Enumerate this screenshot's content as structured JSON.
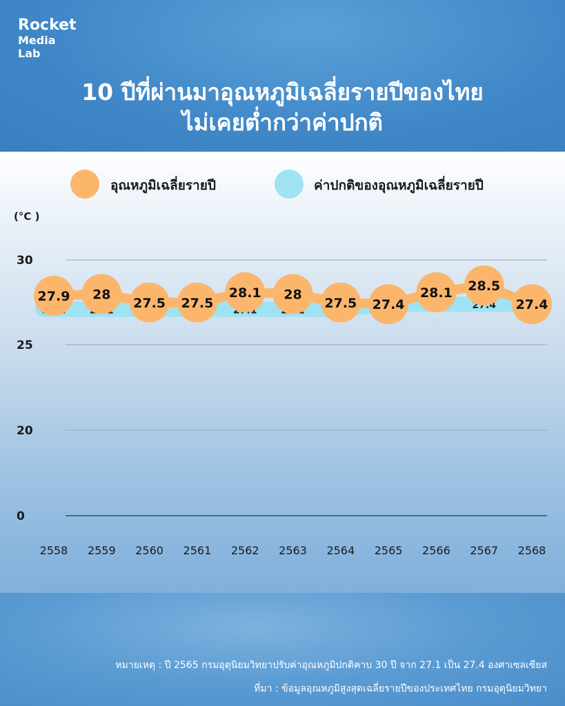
{
  "brand": {
    "line1": "Rocket",
    "line2": "Media",
    "line3": "Lab"
  },
  "title": {
    "line1": "10 ปีที่ผ่านมาอุณหภูมิเฉลี่ยรายปีของไทย",
    "line2": "ไม่เคยต่ำกว่าค่าปกติ"
  },
  "legend": {
    "annual": "อุณหภูมิเฉลี่ยรายปี",
    "normal": "ค่าปกติของอุณหภูมิเฉลี่ยรายปี"
  },
  "colors": {
    "annual": "#fbb66c",
    "normal": "#9fe3f3",
    "grid": "#9aa8b6",
    "axis": "#3a4a5a"
  },
  "footer": {
    "note": "หมายเหตุ : ปี 2565 กรมอุตุนิยมวิทยาปรับค่าอุณหภูมิปกติคาบ 30 ปี จาก 27.1 เป็น 27.4 องศาเซลเซียส",
    "source": "ที่มา : ข้อมูลอุณหภูมิสูงสุดเฉลี่ยรายปีของประเทศไทย กรมอุตุนิยมวิทยา"
  },
  "chart_data": {
    "type": "line",
    "ylabel": "(°C )",
    "yticks": [
      "30",
      "25",
      "20",
      "0"
    ],
    "categories": [
      "2558",
      "2559",
      "2560",
      "2561",
      "2562",
      "2563",
      "2564",
      "2565",
      "2566",
      "2567",
      "2568"
    ],
    "series": [
      {
        "name": "อุณหภูมิเฉลี่ยรายปี",
        "values": [
          27.9,
          28,
          27.5,
          27.5,
          28.1,
          28,
          27.5,
          27.4,
          28.1,
          28.5,
          27.4
        ],
        "labels": [
          "27.9",
          "28",
          "27.5",
          "27.5",
          "28.1",
          "28",
          "27.5",
          "27.4",
          "28.1",
          "28.5",
          "27.4"
        ]
      },
      {
        "name": "ค่าปกติของอุณหภูมิเฉลี่ยรายปี",
        "values": [
          27.1,
          27.1,
          27.1,
          27.1,
          27.1,
          27.1,
          27.1,
          27.4,
          27.4,
          27.4,
          27.4
        ],
        "labels": [
          "27.1",
          "27.1",
          "27.1",
          "27.1",
          "27.1",
          "27.1",
          "27.1",
          "",
          "27.4",
          "27.4",
          ""
        ]
      }
    ],
    "grid": true,
    "legend_position": "top"
  }
}
